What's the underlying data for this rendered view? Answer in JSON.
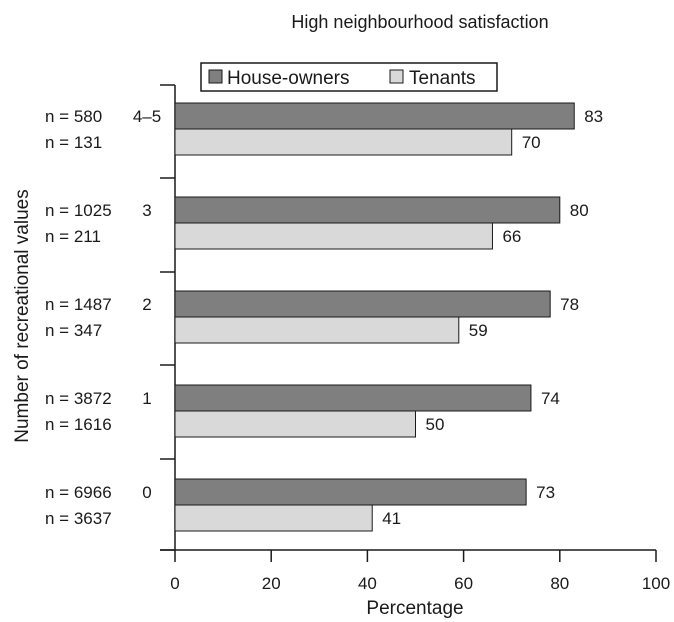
{
  "chart_data": {
    "type": "bar",
    "orientation": "horizontal",
    "title": "High neighbourhood satisfaction",
    "xlabel": "Percentage",
    "ylabel": "Number of recreational values",
    "xlim": [
      0,
      100
    ],
    "xticks": [
      0,
      20,
      40,
      60,
      80,
      100
    ],
    "grid": false,
    "legend_position": "top",
    "categories": [
      "4–5",
      "3",
      "2",
      "1",
      "0"
    ],
    "series": [
      {
        "name": "House-owners",
        "color": "#7f7f7f",
        "values": [
          83,
          80,
          78,
          74,
          73
        ],
        "n": [
          "n = 580",
          "n = 1025",
          "n = 1487",
          "n = 3872",
          "n = 6966"
        ]
      },
      {
        "name": "Tenants",
        "color": "#d9d9d9",
        "values": [
          70,
          66,
          59,
          50,
          41
        ],
        "n": [
          "n = 131",
          "n = 211",
          "n = 347",
          "n = 1616",
          "n = 3637"
        ]
      }
    ]
  }
}
